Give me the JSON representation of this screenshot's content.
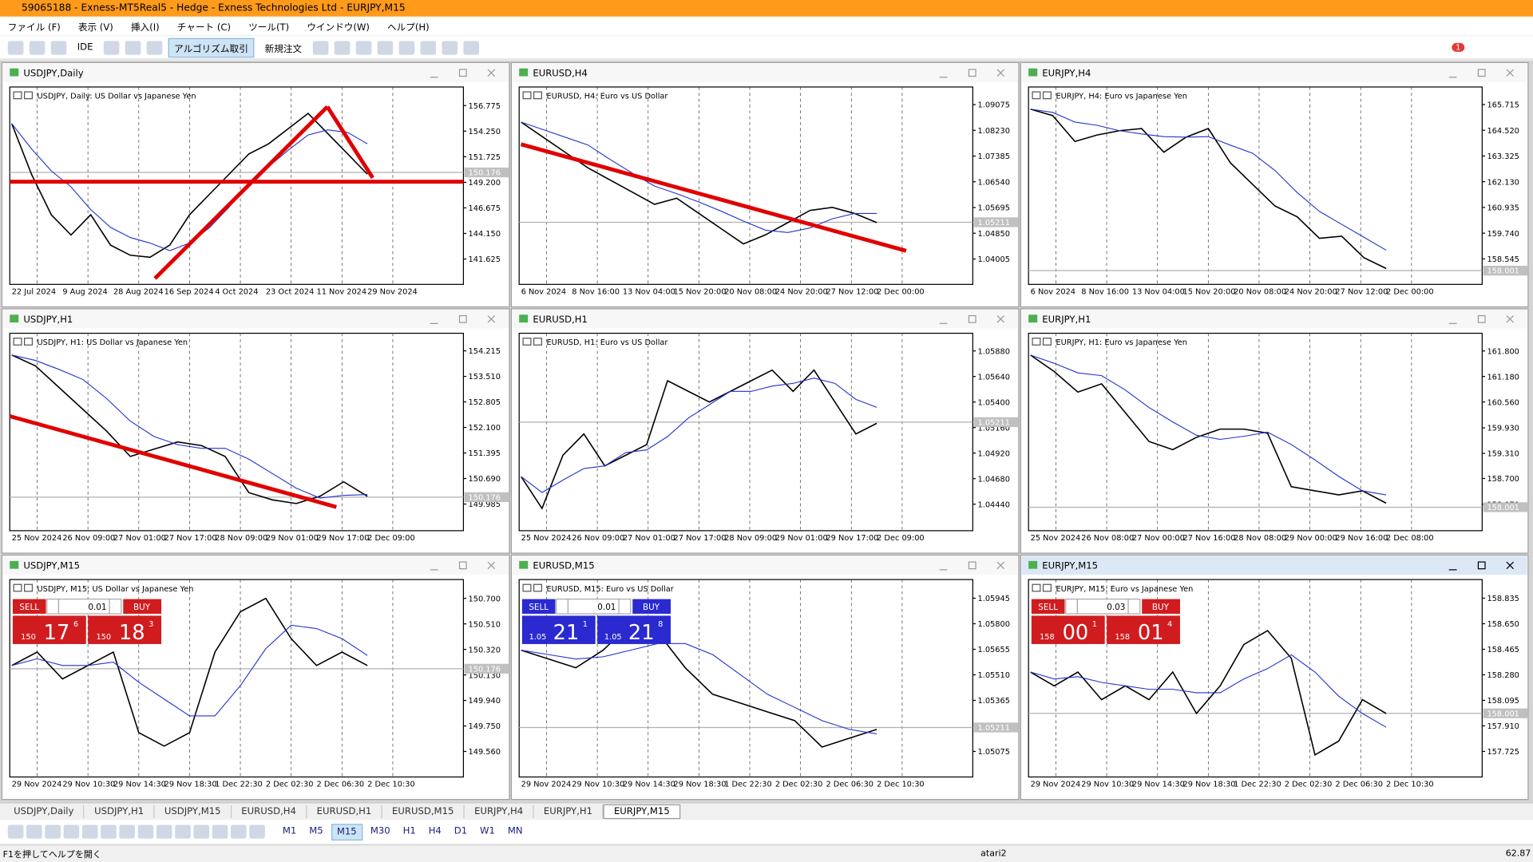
{
  "title_bar": "59065188 - Exness-MT5Real5 - Hedge - Exness Technologies Ltd - EURJPY,M15",
  "menu": [
    "ファイル (F)",
    "表示 (V)",
    "挿入(I)",
    "チャート (C)",
    "ツール(T)",
    "ウインドウ(W)",
    "ヘルプ(H)"
  ],
  "toolbar": {
    "ide": "IDE",
    "algo": "アルゴリズム取引",
    "order": "新規注文",
    "notifications": "1"
  },
  "windows": [
    {
      "title": "USDJPY,Daily",
      "legend": "USDJPY, Daily:  US Dollar vs Japanese Yen",
      "ylim": [
        139.12,
        158.61
      ],
      "yticks": [
        156.775,
        {
          "value": 154.25,
          "label": "154.250"
        },
        151.725,
        {
          "value": 149.2,
          "label": "149.200"
        },
        146.675,
        {
          "value": 144.15,
          "label": "144.150"
        },
        141.625
      ],
      "xlabels": [
        "22 Jul 2024",
        "9 Aug 2024",
        "28 Aug 2024",
        "16 Sep 2024",
        "4 Oct 2024",
        "23 Oct 2024",
        "11 Nov 2024",
        "29 Nov 2024"
      ],
      "price": 150.176,
      "close": [
        155,
        150,
        146,
        144,
        146,
        143,
        142,
        141.8,
        143,
        146,
        148,
        150,
        152,
        153,
        154.5,
        156,
        154,
        152,
        150
      ]
    },
    {
      "title": "EURUSD,H4",
      "legend": "EURUSD, H4:  Euro vs US Dollar",
      "ylim": [
        1.0317,
        1.09653
      ],
      "yticks": [
        1.09075,
        {
          "value": 1.0823,
          "label": "1.08230"
        },
        1.07385,
        {
          "value": 1.0654,
          "label": "1.06540"
        },
        1.05695,
        {
          "value": 1.0485,
          "label": "1.04850"
        },
        1.04005
      ],
      "xlabels": [
        "6 Nov 2024",
        "8 Nov 16:00",
        "13 Nov 04:00",
        "15 Nov 20:00",
        "20 Nov 08:00",
        "24 Nov 20:00",
        "27 Nov 12:00",
        "2 Dec 00:00"
      ],
      "price": 1.05211,
      "close": [
        1.085,
        1.08,
        1.075,
        1.07,
        1.066,
        1.062,
        1.058,
        1.06,
        1.055,
        1.05,
        1.045,
        1.048,
        1.052,
        1.056,
        1.057,
        1.055,
        1.052
      ]
    },
    {
      "title": "EURJPY,H4",
      "legend": "EURJPY, H4:  Euro vs Japanese Yen",
      "ylim": [
        157.36,
        166.53
      ],
      "yticks": [
        165.715,
        {
          "value": 164.52,
          "label": "164.520"
        },
        163.325,
        {
          "value": 162.13,
          "label": "162.130"
        },
        160.935,
        {
          "value": 159.74,
          "label": "159.740"
        },
        158.545
      ],
      "xlabels": [
        "6 Nov 2024",
        "8 Nov 16:00",
        "13 Nov 04:00",
        "15 Nov 20:00",
        "20 Nov 08:00",
        "24 Nov 20:00",
        "27 Nov 12:00",
        "2 Dec 00:00"
      ],
      "price": 158.001,
      "close": [
        165.5,
        165.2,
        164,
        164.3,
        164.5,
        164.6,
        163.5,
        164.2,
        164.6,
        163,
        162,
        161,
        160.5,
        159.5,
        159.6,
        158.6,
        158.1
      ]
    },
    {
      "title": "USDJPY,H1",
      "legend": "USDJPY, H1:  US Dollar vs Japanese Yen",
      "ylim": [
        149.25,
        154.7
      ],
      "yticks": [
        154.215,
        {
          "value": 153.51,
          "label": "153.510"
        },
        152.805,
        {
          "value": 152.1,
          "label": "152.100"
        },
        151.395,
        {
          "value": 150.69,
          "label": "150.690"
        },
        149.985
      ],
      "xlabels": [
        "25 Nov 2024",
        "26 Nov 09:00",
        "27 Nov 01:00",
        "27 Nov 17:00",
        "28 Nov 09:00",
        "29 Nov 01:00",
        "29 Nov 17:00",
        "2 Dec 09:00"
      ],
      "price": 150.176,
      "close": [
        154.1,
        153.8,
        153.2,
        152.6,
        152,
        151.3,
        151.5,
        151.7,
        151.6,
        151.3,
        150.3,
        150.1,
        150,
        150.2,
        150.6,
        150.2
      ]
    },
    {
      "title": "EURUSD,H1",
      "legend": "EURUSD, H1:  Euro vs US Dollar",
      "ylim": [
        1.04191,
        1.06046
      ],
      "yticks": [
        {
          "value": 1.0588,
          "label": "1.05880"
        },
        {
          "value": 1.0564,
          "label": "1.05640"
        },
        {
          "value": 1.054,
          "label": "1.05400"
        },
        {
          "value": 1.0516,
          "label": "1.05160"
        },
        {
          "value": 1.0492,
          "label": "1.04920"
        },
        {
          "value": 1.0468,
          "label": "1.04680"
        },
        {
          "value": 1.0444,
          "label": "1.04440"
        }
      ],
      "xlabels": [
        "25 Nov 2024",
        "26 Nov 09:00",
        "27 Nov 01:00",
        "27 Nov 17:00",
        "28 Nov 09:00",
        "29 Nov 01:00",
        "29 Nov 17:00",
        "2 Dec 09:00"
      ],
      "price": 1.05211,
      "close": [
        1.047,
        1.044,
        1.049,
        1.051,
        1.048,
        1.049,
        1.05,
        1.056,
        1.055,
        1.054,
        1.055,
        1.056,
        1.057,
        1.055,
        1.057,
        1.054,
        1.051,
        1.052
      ]
    },
    {
      "title": "EURJPY,H1",
      "legend": "EURJPY, H1:  Euro vs Japanese Yen",
      "ylim": [
        157.43,
        162.23
      ],
      "yticks": [
        {
          "value": 161.8,
          "label": "161.800"
        },
        {
          "value": 161.18,
          "label": "161.180"
        },
        {
          "value": 160.56,
          "label": "160.560"
        },
        {
          "value": 159.93,
          "label": "159.930"
        },
        {
          "value": 159.31,
          "label": "159.310"
        },
        {
          "value": 158.7,
          "label": "158.700"
        },
        {
          "value": 158.07,
          "label": "158.070"
        }
      ],
      "xlabels": [
        "25 Nov 2024",
        "26 Nov 08:00",
        "27 Nov 00:00",
        "27 Nov 16:00",
        "28 Nov 08:00",
        "29 Nov 00:00",
        "29 Nov 16:00",
        "2 Dec 08:00"
      ],
      "price": 158.001,
      "close": [
        161.7,
        161.3,
        160.8,
        161,
        160.3,
        159.6,
        159.4,
        159.7,
        159.9,
        159.9,
        159.8,
        158.5,
        158.4,
        158.3,
        158.4,
        158.1
      ]
    },
    {
      "title": "USDJPY,M15",
      "legend": "USDJPY, M15:  US Dollar vs Japanese Yen",
      "ylim": [
        149.37,
        150.84
      ],
      "yticks": [
        {
          "value": 150.7,
          "label": "150.700"
        },
        {
          "value": 150.51,
          "label": "150.510"
        },
        {
          "value": 150.32,
          "label": "150.320"
        },
        {
          "value": 150.13,
          "label": "150.130"
        },
        {
          "value": 149.94,
          "label": "149.940"
        },
        {
          "value": 149.75,
          "label": "149.750"
        },
        {
          "value": 149.56,
          "label": "149.560"
        }
      ],
      "xlabels": [
        "29 Nov 2024",
        "29 Nov 10:30",
        "29 Nov 14:30",
        "29 Nov 18:30",
        "1 Dec 22:30",
        "2 Dec 02:30",
        "2 Dec 06:30",
        "2 Dec 10:30"
      ],
      "price": 150.176,
      "close": [
        150.2,
        150.3,
        150.1,
        150.2,
        150.3,
        149.7,
        149.6,
        149.7,
        150.3,
        150.6,
        150.7,
        150.4,
        150.2,
        150.3,
        150.2
      ],
      "trade": {
        "sell": "SELL",
        "buy": "BUY",
        "lot": "0.01",
        "color": "#d01c1f",
        "bid_big": "150",
        "bid": "17",
        "bid_sup": "6",
        "ask_big": "150",
        "ask": "18",
        "ask_sup": "3"
      }
    },
    {
      "title": "EURUSD,M15",
      "legend": "EURUSD, M15:  Euro vs US Dollar",
      "ylim": [
        1.0493,
        1.06051
      ],
      "yticks": [
        1.05945,
        {
          "value": 1.058,
          "label": "1.05800"
        },
        1.05655,
        {
          "value": 1.0551,
          "label": "1.05510"
        },
        1.05365,
        1.05075
      ],
      "xlabels": [
        "29 Nov 2024",
        "29 Nov 10:30",
        "29 Nov 14:30",
        "29 Nov 18:30",
        "1 Dec 22:30",
        "2 Dec 02:30",
        "2 Dec 06:30",
        "2 Dec 10:30"
      ],
      "price": 1.05211,
      "close": [
        1.0565,
        1.056,
        1.0555,
        1.0565,
        1.058,
        1.0575,
        1.0555,
        1.054,
        1.0535,
        1.053,
        1.0525,
        1.051,
        1.0515,
        1.052
      ],
      "trade": {
        "sell": "SELL",
        "buy": "BUY",
        "lot": "0.01",
        "color": "#2a2ad0",
        "bid_big": "1.05",
        "bid": "21",
        "bid_sup": "1",
        "ask_big": "1.05",
        "ask": "21",
        "ask_sup": "8"
      }
    },
    {
      "title": "EURJPY,M15",
      "legend": "EURJPY, M15:  Euro vs Japanese Yen",
      "ylim": [
        157.54,
        158.97
      ],
      "yticks": [
        158.835,
        {
          "value": 158.65,
          "label": "158.650"
        },
        158.465,
        {
          "value": 158.28,
          "label": "158.280"
        },
        158.095,
        {
          "value": 157.91,
          "label": "157.910"
        },
        157.725
      ],
      "xlabels": [
        "29 Nov 2024",
        "29 Nov 10:30",
        "29 Nov 14:30",
        "29 Nov 18:30",
        "1 Dec 22:30",
        "2 Dec 02:30",
        "2 Dec 06:30",
        "2 Dec 10:30"
      ],
      "price": 158.001,
      "close": [
        158.3,
        158.2,
        158.3,
        158.1,
        158.2,
        158.1,
        158.3,
        158,
        158.2,
        158.5,
        158.6,
        158.4,
        157.7,
        157.8,
        158.1,
        158
      ],
      "trade": {
        "sell": "SELL",
        "buy": "BUY",
        "lot": "0.03",
        "color": "#d01c1f",
        "bid_big": "158",
        "bid": "00",
        "bid_sup": "1",
        "ask_big": "158",
        "ask": "01",
        "ask_sup": "4"
      }
    }
  ],
  "tabs": [
    "USDJPY,Daily",
    "USDJPY,H1",
    "USDJPY,M15",
    "EURUSD,H4",
    "EURUSD,H1",
    "EURUSD,M15",
    "EURJPY,H4",
    "EURJPY,H1",
    "EURJPY,M15"
  ],
  "timeframes": [
    "M1",
    "M5",
    "M15",
    "M30",
    "H1",
    "H4",
    "D1",
    "W1",
    "MN"
  ],
  "status": {
    "help": "F1を押してヘルプを開く",
    "profile": "atari2",
    "ping": "62.87"
  }
}
